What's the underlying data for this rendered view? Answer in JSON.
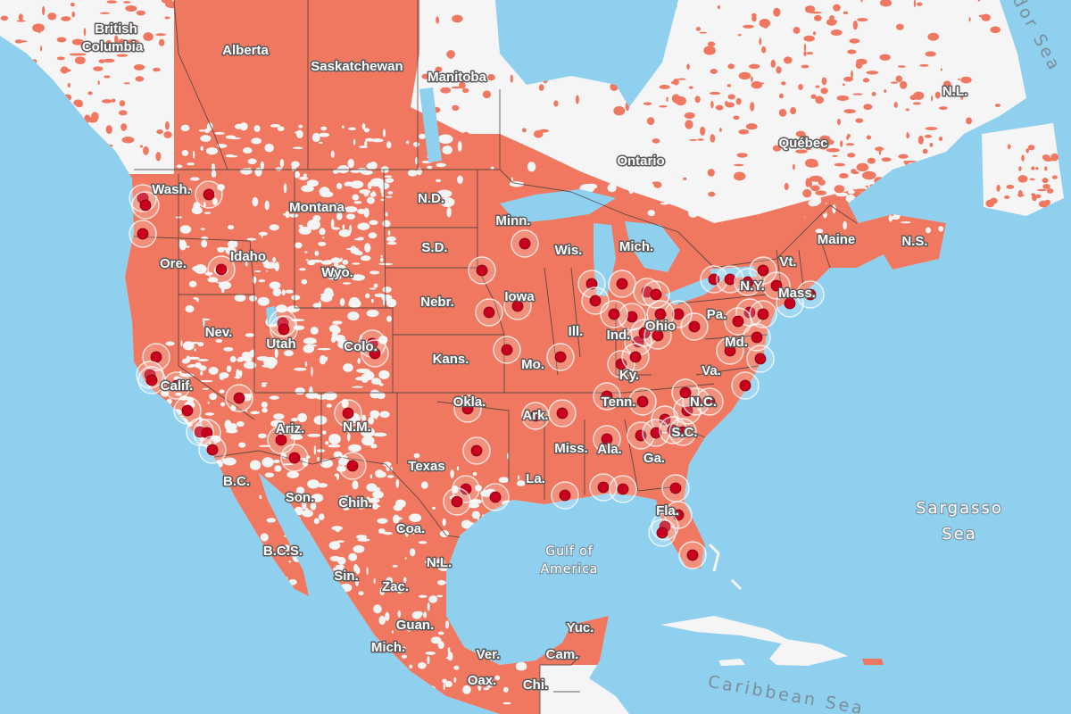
{
  "colors": {
    "ocean": "#8fd0ef",
    "land": "#f5f5f5",
    "coverage": "#f07860",
    "marker": "#c8001e",
    "marker_halo": "#ffffff",
    "border": "#3a3a3a"
  },
  "region_labels": [
    "British",
    "Columbia",
    "Alberta",
    "Saskatchewan",
    "Manitoba",
    "Ontario",
    "Québec",
    "N.L.",
    "Wash.",
    "Montana",
    "N.D.",
    "Minn.",
    "Ore.",
    "Idaho",
    "S.D.",
    "Wis.",
    "Mich.",
    "Maine",
    "N.S.",
    "Vt.",
    "Wyo.",
    "Nebr.",
    "Iowa",
    "N.Y.",
    "Mass.",
    "Nev.",
    "Utah",
    "Colo.",
    "Kans.",
    "Mo.",
    "Ill.",
    "Ind.",
    "Ohio",
    "Pa.",
    "Md.",
    "Ky.",
    "Va.",
    "Calif.",
    "Okla.",
    "Ark.",
    "Tenn.",
    "N.C.",
    "Ariz.",
    "N.M.",
    "Miss.",
    "Ala.",
    "Ga.",
    "S.C.",
    "Texas",
    "La.",
    "B.C.",
    "Son.",
    "Chih.",
    "Fla.",
    "Coa.",
    "B.C.S.",
    "N.L.",
    "Sin.",
    "Zac.",
    "Guan.",
    "Mich.",
    "Yuc.",
    "Ver.",
    "Cam.",
    "Oax.",
    "Chi."
  ],
  "water_labels": {
    "sargasso_line1": "Sargasso",
    "sargasso_line2": "Sea",
    "gulf_line1": "Gulf of",
    "gulf_line2": "America",
    "caribbean": "Caribbean Sea",
    "labrador": "Labrador Sea"
  },
  "legend": {
    "markers": "marker-with-halo",
    "coverage_area": "coverage-fill"
  }
}
